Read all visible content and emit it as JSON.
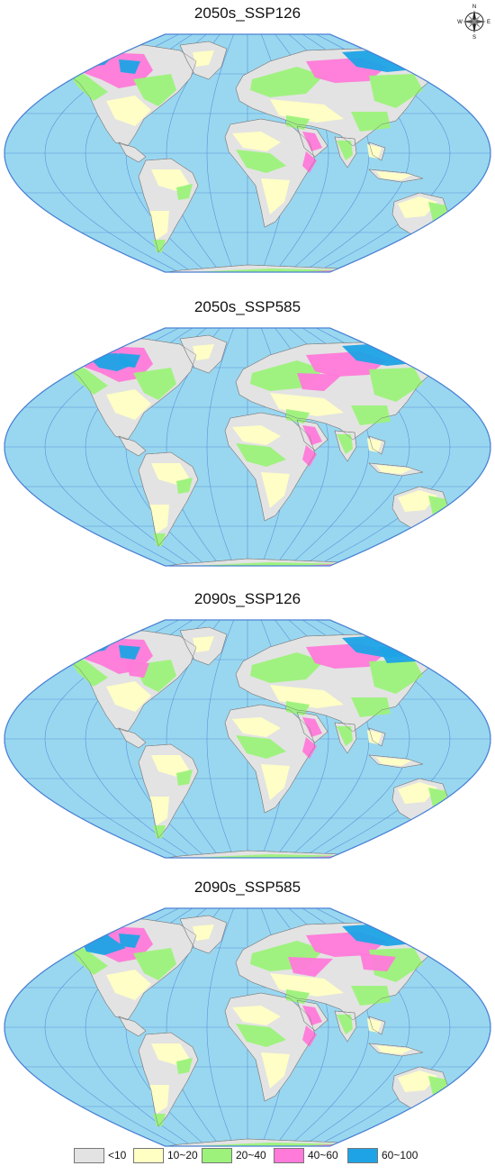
{
  "panels": [
    {
      "title": "2050s_SSP126"
    },
    {
      "title": "2050s_SSP585"
    },
    {
      "title": "2090s_SSP126"
    },
    {
      "title": "2090s_SSP585"
    }
  ],
  "compass": {
    "n": "N",
    "s": "S",
    "e": "E",
    "w": "W"
  },
  "legend": [
    {
      "label": "<10",
      "color": "#e3e3e3"
    },
    {
      "label": "10~20",
      "color": "#ffffc4"
    },
    {
      "label": "20~40",
      "color": "#9cf27a"
    },
    {
      "label": "40~60",
      "color": "#ff7ad9"
    },
    {
      "label": "60~100",
      "color": "#1ea3e6"
    }
  ],
  "colors": {
    "ocean": "#99d7f0",
    "graticule": "#4a82d4",
    "land_base": "#e3e3e3",
    "border": "#8f8f8f"
  }
}
